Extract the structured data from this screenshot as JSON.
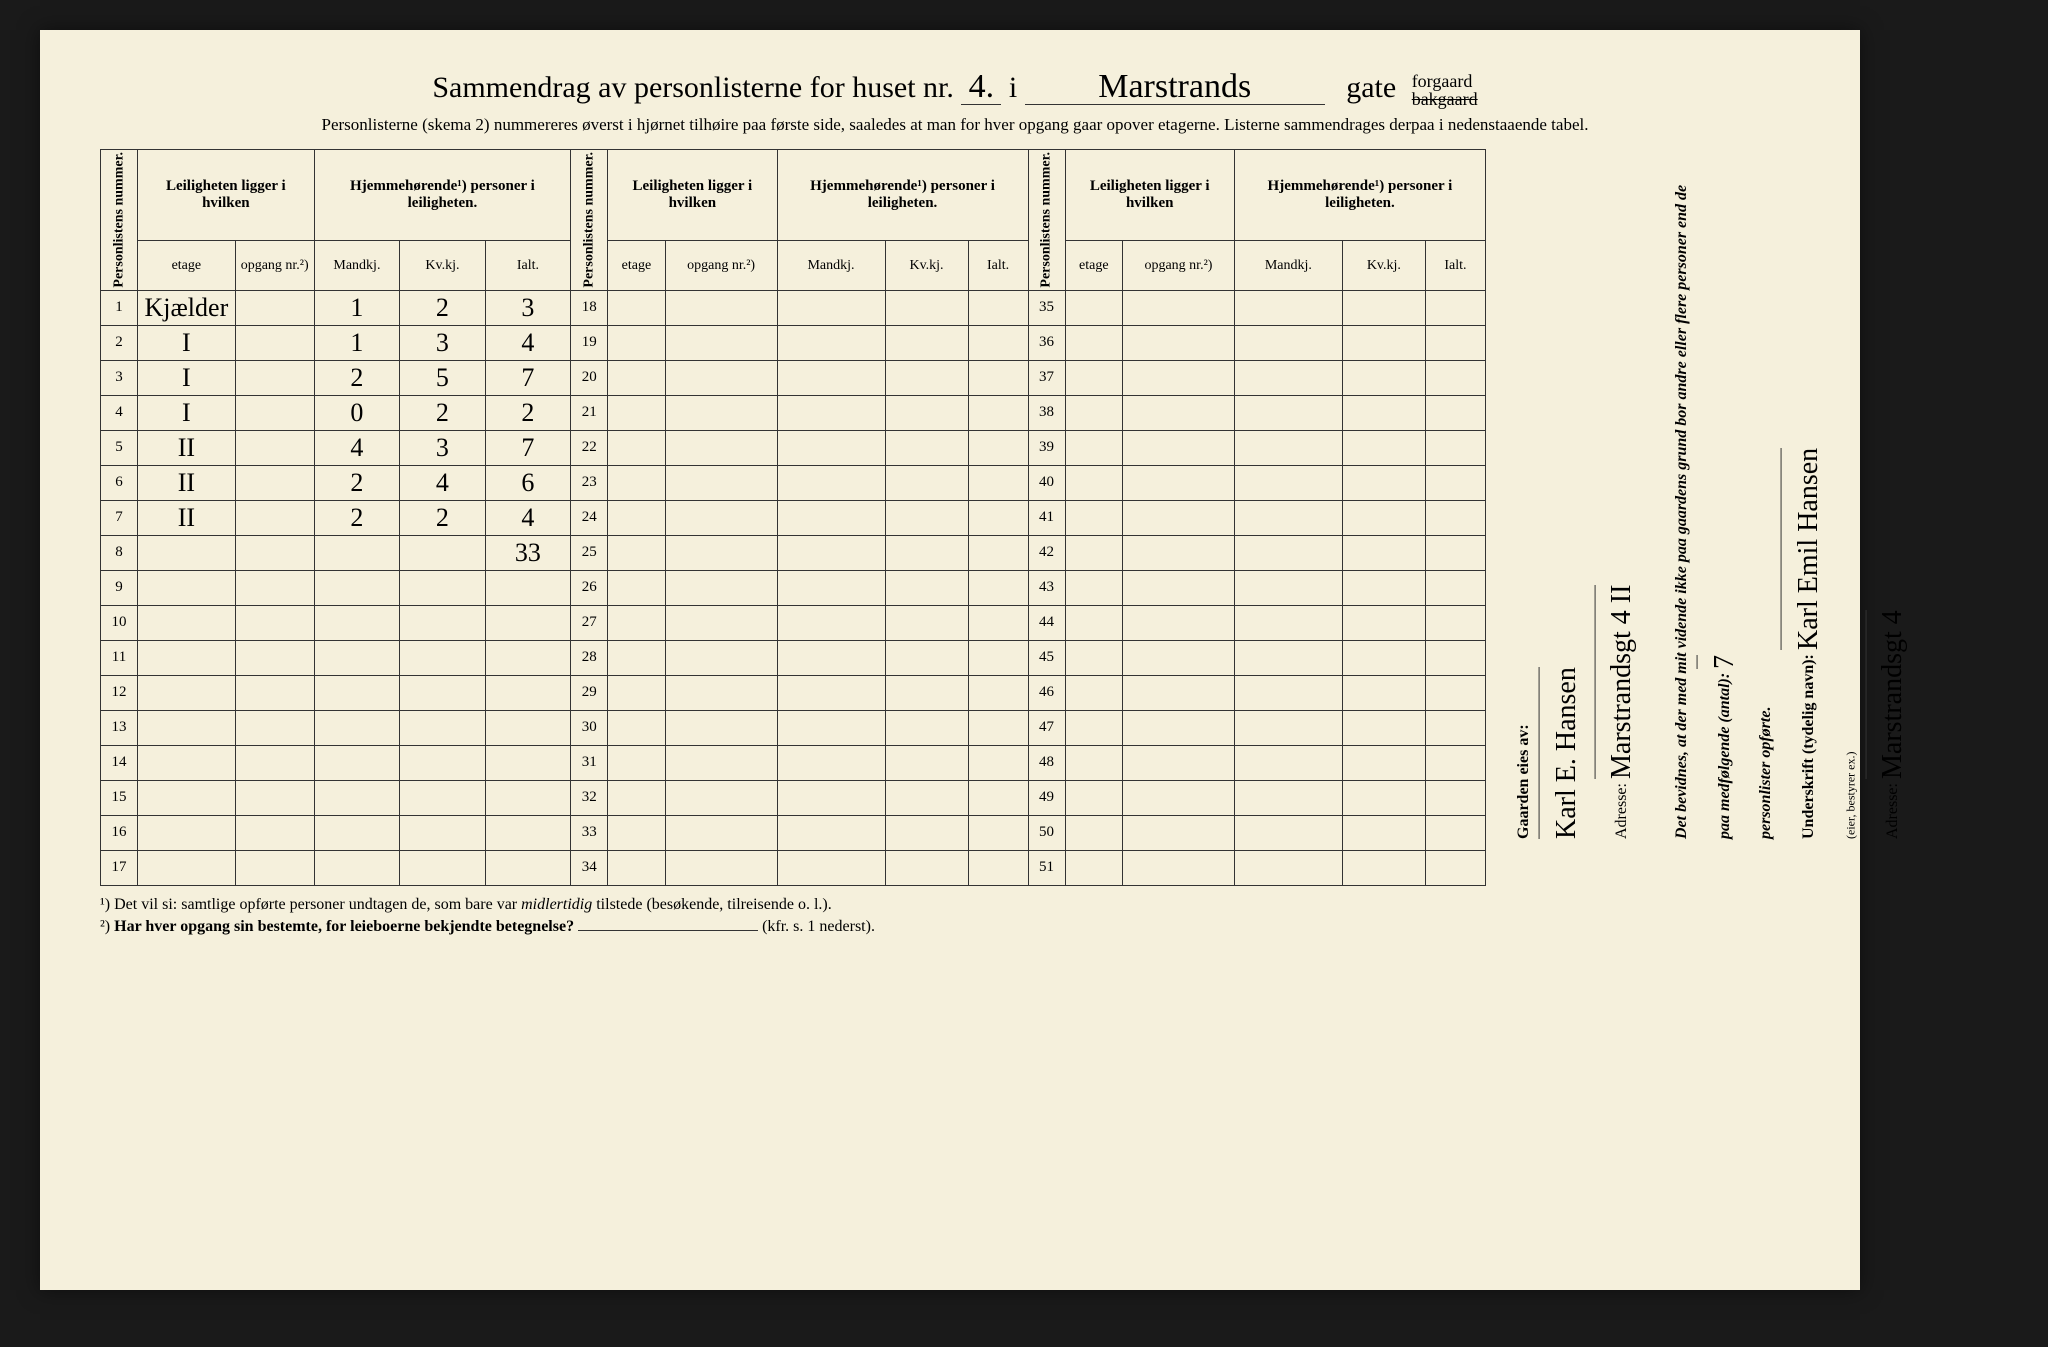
{
  "title": {
    "prefix": "Sammendrag av personlisterne for huset nr.",
    "house_nr": "4.",
    "i": "i",
    "street": "Marstrands",
    "gate": "gate",
    "forgaard": "forgaard",
    "bakgaard": "bakgaard"
  },
  "subtitle": "Personlisterne (skema 2) nummereres øverst i hjørnet tilhøire paa første side, saaledes at man for hver opgang gaar opover etagerne. Listerne sammendrages derpaa i nedenstaaende tabel.",
  "headers": {
    "personlistens_nummer": "Personlistens nummer.",
    "leiligheten": "Leiligheten ligger i hvilken",
    "hjemmehorende": "Hjemmehørende¹) personer i leiligheten.",
    "etage": "etage",
    "opgang": "opgang nr.²)",
    "mandkj": "Mandkj.",
    "kvkj": "Kv.kj.",
    "ialt": "Ialt."
  },
  "rows_block1": [
    {
      "n": 1,
      "etage": "Kjælder",
      "opgang": "",
      "m": "1",
      "k": "2",
      "i": "3"
    },
    {
      "n": 2,
      "etage": "I",
      "opgang": "",
      "m": "1",
      "k": "3",
      "i": "4"
    },
    {
      "n": 3,
      "etage": "I",
      "opgang": "",
      "m": "2",
      "k": "5",
      "i": "7"
    },
    {
      "n": 4,
      "etage": "I",
      "opgang": "",
      "m": "0",
      "k": "2",
      "i": "2"
    },
    {
      "n": 5,
      "etage": "II",
      "opgang": "",
      "m": "4",
      "k": "3",
      "i": "7"
    },
    {
      "n": 6,
      "etage": "II",
      "opgang": "",
      "m": "2",
      "k": "4",
      "i": "6"
    },
    {
      "n": 7,
      "etage": "II",
      "opgang": "",
      "m": "2",
      "k": "2",
      "i": "4"
    },
    {
      "n": 8,
      "etage": "",
      "opgang": "",
      "m": "",
      "k": "",
      "i": "33"
    },
    {
      "n": 9
    },
    {
      "n": 10
    },
    {
      "n": 11
    },
    {
      "n": 12
    },
    {
      "n": 13
    },
    {
      "n": 14
    },
    {
      "n": 15
    },
    {
      "n": 16
    },
    {
      "n": 17
    }
  ],
  "rows_block2_start": 18,
  "rows_block2_end": 34,
  "rows_block3_start": 35,
  "rows_block3_end": 51,
  "footnotes": {
    "f1_sup": "¹)",
    "f1": "Det vil si: samtlige opførte personer undtagen de, som bare var midlertidig tilstede (besøkende, tilreisende o. l.).",
    "f1_italic": "midlertidig",
    "f2_sup": "²)",
    "f2": "Har hver opgang sin bestemte, for leieboerne bekjendte betegnelse?",
    "f2_suffix": "(kfr. s. 1 nederst)."
  },
  "right": {
    "gaarden_eies": "Gaarden eies av:",
    "owner": "Karl E. Hansen",
    "adresse_label": "Adresse:",
    "owner_addr": "Marstrandsgt 4 II",
    "bevidnes": "Det bevidnes, at der med mit vidende ikke paa gaardens grund bor andre eller flere personer end de paa medfølgende (antal):",
    "count": "7",
    "personlister": "personlister opførte.",
    "underskrift": "Underskrift (tydelig navn):",
    "signature": "Karl Emil Hansen",
    "eier_note": "(eier, bestyrer ex.)",
    "sign_addr": "Marstrandsgt 4"
  },
  "colors": {
    "paper": "#f5f0dc",
    "ink": "#333333",
    "bg": "#1a1a1a"
  }
}
